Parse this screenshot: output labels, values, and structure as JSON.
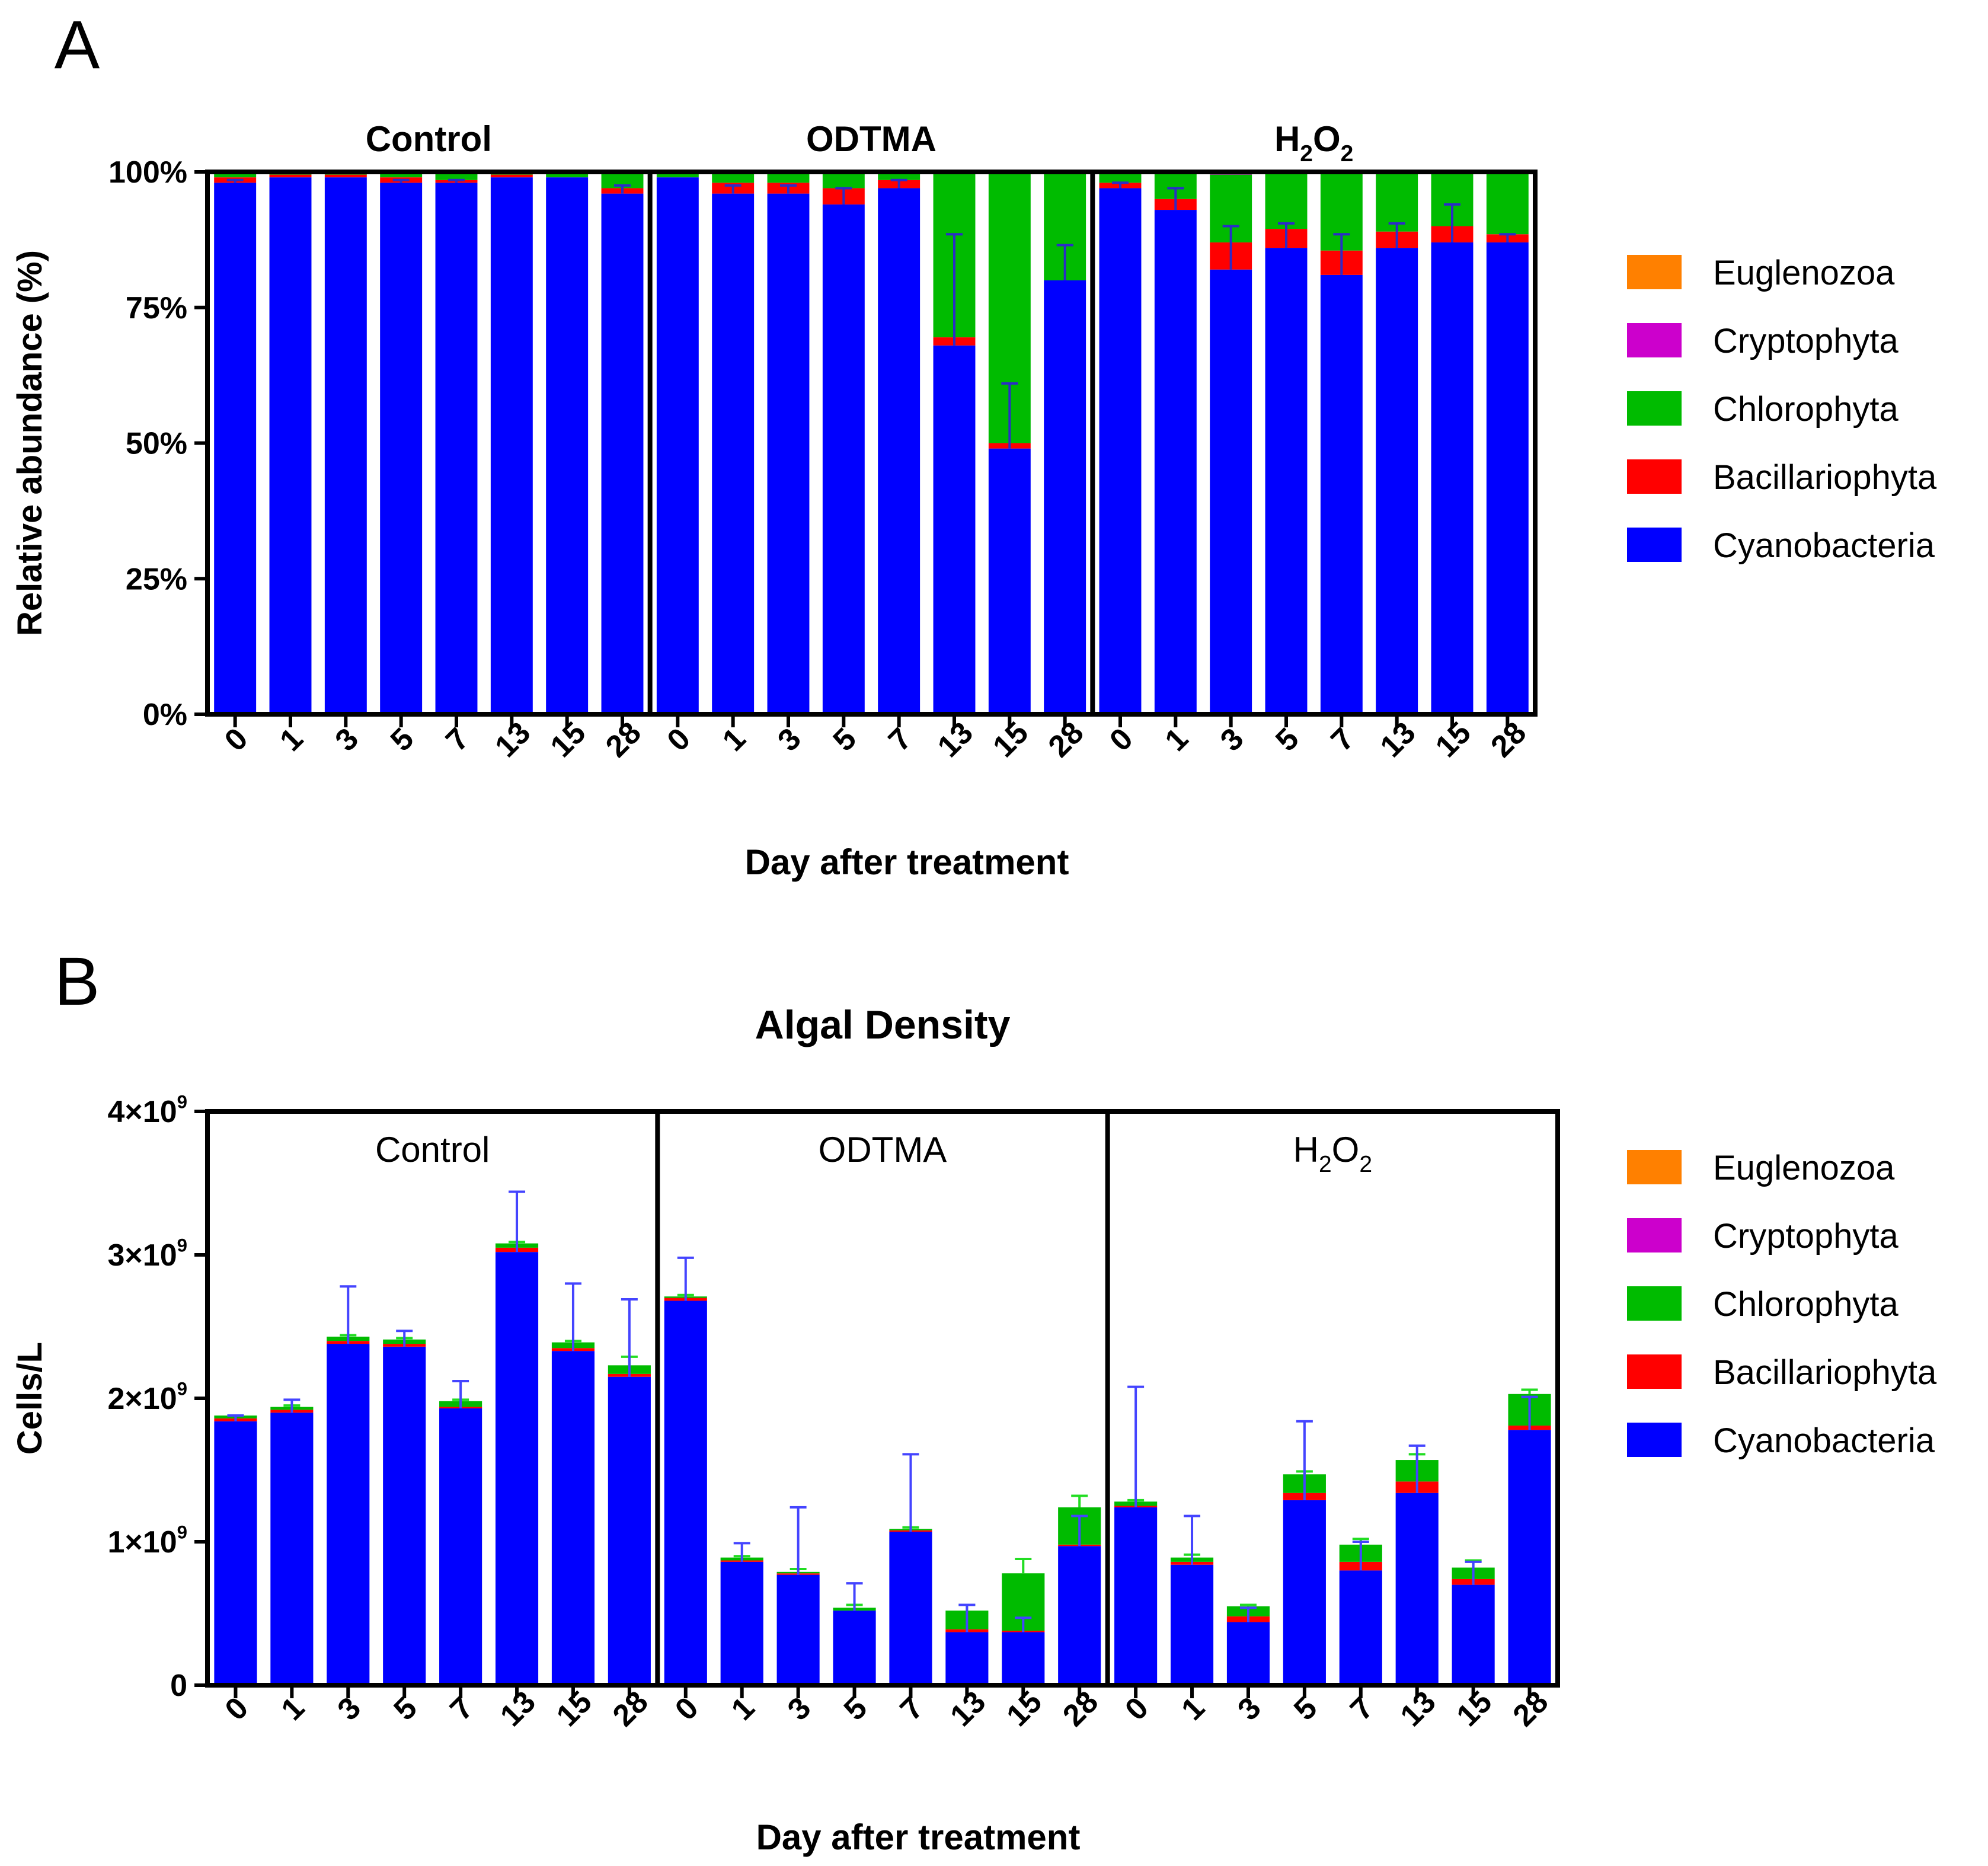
{
  "chart_data": [
    {
      "panel_label": "A",
      "type": "bar",
      "stacked": true,
      "title": "",
      "ylabel": "Relative abundance (%)",
      "xlabel": "Day after treatment",
      "ylim": [
        0,
        100
      ],
      "yticks": [
        0,
        25,
        50,
        75,
        100
      ],
      "ytick_labels": [
        "0%",
        "25%",
        "50%",
        "75%",
        "100%"
      ],
      "groups": [
        {
          "name": "Control",
          "label_parts": [
            {
              "t": "Control"
            }
          ]
        },
        {
          "name": "ODTMA",
          "label_parts": [
            {
              "t": "ODTMA"
            }
          ]
        },
        {
          "name": "H2O2",
          "label_parts": [
            {
              "t": "H"
            },
            {
              "t": "2",
              "sub": true
            },
            {
              "t": "O"
            },
            {
              "t": "2",
              "sub": true
            }
          ]
        }
      ],
      "categories": [
        "0",
        "1",
        "3",
        "5",
        "7",
        "13",
        "15",
        "28"
      ],
      "series": [
        {
          "name": "Cyanobacteria",
          "color": "#0000ff",
          "values": [
            [
              98,
              99,
              99,
              98,
              98,
              99,
              99,
              96
            ],
            [
              99,
              96,
              96,
              94,
              97,
              68,
              49,
              80
            ],
            [
              97,
              93,
              82,
              86,
              81,
              86,
              87,
              87
            ]
          ]
        },
        {
          "name": "Bacillariophyta",
          "color": "#ff0000",
          "values": [
            [
              1,
              0.5,
              0.5,
              1,
              0.5,
              0.5,
              0,
              1
            ],
            [
              0,
              2,
              2,
              3,
              1.5,
              1.5,
              1,
              0
            ],
            [
              1,
              2,
              5,
              3.5,
              4.5,
              3,
              3,
              1.5
            ]
          ]
        },
        {
          "name": "Chlorophyta",
          "color": "#00bb00",
          "values": [
            [
              1,
              0.5,
              0.5,
              1,
              1.5,
              0.5,
              1,
              3
            ],
            [
              1,
              2,
              2,
              3,
              1.5,
              30.5,
              50,
              20
            ],
            [
              2,
              5,
              12.5,
              10.5,
              14.5,
              11,
              10,
              11.5
            ]
          ]
        },
        {
          "name": "Cryptophyta",
          "color": "#cc00cc",
          "values": [
            [
              0,
              0,
              0,
              0,
              0,
              0,
              0,
              0
            ],
            [
              0,
              0,
              0,
              0,
              0,
              0,
              0,
              0
            ],
            [
              0,
              0,
              0.5,
              0,
              0,
              0,
              0,
              0
            ]
          ]
        },
        {
          "name": "Euglenozoa",
          "color": "#ff8000",
          "values": [
            [
              0,
              0,
              0,
              0,
              0,
              0,
              0,
              0
            ],
            [
              0,
              0,
              0,
              0,
              0,
              0,
              0,
              0
            ],
            [
              0,
              0,
              0,
              0,
              0,
              0,
              0,
              0
            ]
          ]
        }
      ],
      "error_bars": {
        "color": "#2b2bc8",
        "tops": [
          [
            98.5,
            99,
            99,
            98.5,
            98.5,
            99,
            99,
            97.5
          ],
          [
            99,
            97.5,
            97.5,
            97,
            98.5,
            88.5,
            61,
            86.5
          ],
          [
            98,
            97,
            90,
            90.5,
            88.5,
            90.5,
            94,
            88.5
          ]
        ]
      },
      "legend": [
        "Euglenozoa",
        "Cryptophyta",
        "Chlorophyta",
        "Bacillariophyta",
        "Cyanobacteria"
      ],
      "legend_position": "right"
    },
    {
      "panel_label": "B",
      "type": "bar",
      "stacked": true,
      "title": "Algal Density",
      "ylabel": "Cells/L",
      "xlabel": "Day after treatment",
      "ylim": [
        0,
        4
      ],
      "y_unit_multiplier": 1000000000,
      "yticks": [
        0,
        1,
        2,
        3,
        4
      ],
      "ytick_labels": [
        [
          {
            "t": "0"
          }
        ],
        [
          {
            "t": "1×10"
          },
          {
            "t": "9",
            "sup": true
          }
        ],
        [
          {
            "t": "2×10"
          },
          {
            "t": "9",
            "sup": true
          }
        ],
        [
          {
            "t": "3×10"
          },
          {
            "t": "9",
            "sup": true
          }
        ],
        [
          {
            "t": "4×10"
          },
          {
            "t": "9",
            "sup": true
          }
        ]
      ],
      "groups": [
        {
          "name": "Control",
          "label_parts": [
            {
              "t": "Control"
            }
          ]
        },
        {
          "name": "ODTMA",
          "label_parts": [
            {
              "t": "ODTMA"
            }
          ]
        },
        {
          "name": "H2O2",
          "label_parts": [
            {
              "t": "H"
            },
            {
              "t": "2",
              "sub": true
            },
            {
              "t": "O"
            },
            {
              "t": "2",
              "sub": true
            }
          ]
        }
      ],
      "categories": [
        "0",
        "1",
        "3",
        "5",
        "7",
        "13",
        "15",
        "28"
      ],
      "series": [
        {
          "name": "Cyanobacteria",
          "color": "#0000ff",
          "values": [
            [
              1.84,
              1.9,
              2.38,
              2.36,
              1.93,
              3.02,
              2.33,
              2.15
            ],
            [
              2.68,
              0.86,
              0.77,
              0.52,
              1.07,
              0.37,
              0.37,
              0.97
            ],
            [
              1.24,
              0.84,
              0.44,
              1.29,
              0.8,
              1.34,
              0.7,
              1.78
            ]
          ]
        },
        {
          "name": "Bacillariophyta",
          "color": "#ff0000",
          "values": [
            [
              0.02,
              0.02,
              0.02,
              0.02,
              0.01,
              0.03,
              0.02,
              0.02
            ],
            [
              0.02,
              0.01,
              0.01,
              0,
              0.01,
              0.02,
              0.01,
              0.01
            ],
            [
              0.01,
              0.02,
              0.04,
              0.05,
              0.06,
              0.08,
              0.04,
              0.03
            ]
          ]
        },
        {
          "name": "Chlorophyta",
          "color": "#00bb00",
          "values": [
            [
              0.02,
              0.02,
              0.03,
              0.03,
              0.04,
              0.03,
              0.04,
              0.06
            ],
            [
              0.01,
              0.02,
              0.01,
              0.02,
              0.01,
              0.13,
              0.4,
              0.26
            ],
            [
              0.03,
              0.03,
              0.07,
              0.13,
              0.12,
              0.15,
              0.08,
              0.22
            ]
          ]
        },
        {
          "name": "Cryptophyta",
          "color": "#cc00cc",
          "values": [
            [
              0,
              0,
              0,
              0,
              0,
              0,
              0,
              0
            ],
            [
              0,
              0,
              0,
              0,
              0,
              0,
              0,
              0
            ],
            [
              0,
              0,
              0,
              0,
              0,
              0,
              0,
              0
            ]
          ]
        },
        {
          "name": "Euglenozoa",
          "color": "#ff8000",
          "values": [
            [
              0,
              0,
              0,
              0,
              0,
              0,
              0,
              0
            ],
            [
              0,
              0,
              0,
              0,
              0,
              0,
              0,
              0
            ],
            [
              0,
              0,
              0,
              0,
              0,
              0,
              0,
              0
            ]
          ]
        }
      ],
      "error_bars": {
        "cyano_color": "#4444ff",
        "chloro_color": "#22dd22",
        "cyano_tops": [
          [
            1.88,
            1.99,
            2.78,
            2.47,
            2.12,
            3.44,
            2.8,
            2.69
          ],
          [
            2.98,
            0.99,
            1.24,
            0.71,
            1.61,
            0.56,
            0.47,
            1.18
          ],
          [
            2.08,
            1.18,
            0.54,
            1.84,
            1.0,
            1.67,
            0.86,
            2.01
          ]
        ],
        "chloro_tops": [
          [
            1.88,
            1.95,
            2.44,
            2.42,
            1.99,
            3.09,
            2.4,
            2.29
          ],
          [
            2.72,
            0.9,
            0.81,
            0.56,
            1.1,
            0.56,
            0.88,
            1.32
          ],
          [
            1.29,
            0.91,
            0.56,
            1.49,
            1.02,
            1.61,
            0.87,
            2.06
          ]
        ]
      },
      "legend": [
        "Euglenozoa",
        "Cryptophyta",
        "Chlorophyta",
        "Bacillariophyta",
        "Cyanobacteria"
      ],
      "legend_position": "right"
    }
  ]
}
